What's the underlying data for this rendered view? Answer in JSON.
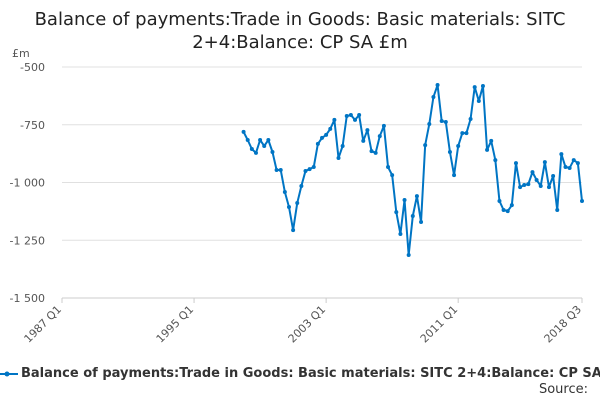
{
  "chart_data": {
    "type": "line",
    "title": "Balance of payments:Trade in Goods: Basic materials: SITC 2+4:Balance: CP SA £m",
    "ylabel": "£m",
    "ylim": [
      -1500,
      -500
    ],
    "yticks": [
      -500,
      -750,
      -1000,
      -1250,
      -1500
    ],
    "yticklabels": [
      "-500",
      "-750",
      "-1 000",
      "-1 250",
      "-1 500"
    ],
    "xticklabels": [
      "1987 Q1",
      "1995 Q1",
      "2003 Q1",
      "2011 Q1",
      "2018 Q3"
    ],
    "grid": true,
    "legend_placement": "bottom",
    "color": "#0075c4",
    "series": [
      {
        "name": "Balance of payments:Trade in Goods: Basic materials: SITC 2+4:Balance: CP SA £m",
        "x": [
          "1998 Q1",
          "1998 Q2",
          "1998 Q3",
          "1998 Q4",
          "1999 Q1",
          "1999 Q2",
          "1999 Q3",
          "1999 Q4",
          "2000 Q1",
          "2000 Q2",
          "2000 Q3",
          "2000 Q4",
          "2001 Q1",
          "2001 Q2",
          "2001 Q3",
          "2001 Q4",
          "2002 Q1",
          "2002 Q2",
          "2002 Q3",
          "2002 Q4",
          "2003 Q1",
          "2003 Q2",
          "2003 Q3",
          "2003 Q4",
          "2004 Q1",
          "2004 Q2",
          "2004 Q3",
          "2004 Q4",
          "2005 Q1",
          "2005 Q2",
          "2005 Q3",
          "2005 Q4",
          "2006 Q1",
          "2006 Q2",
          "2006 Q3",
          "2006 Q4",
          "2007 Q1",
          "2007 Q2",
          "2007 Q3",
          "2007 Q4",
          "2008 Q1",
          "2008 Q2",
          "2008 Q3",
          "2008 Q4",
          "2009 Q1",
          "2009 Q2",
          "2009 Q3",
          "2009 Q4",
          "2010 Q1",
          "2010 Q2",
          "2010 Q3",
          "2010 Q4",
          "2011 Q1",
          "2011 Q2",
          "2011 Q3",
          "2011 Q4",
          "2012 Q1",
          "2012 Q2",
          "2012 Q3",
          "2012 Q4",
          "2013 Q1",
          "2013 Q2",
          "2013 Q3",
          "2013 Q4",
          "2014 Q1",
          "2014 Q2",
          "2014 Q3",
          "2014 Q4",
          "2015 Q1",
          "2015 Q2",
          "2015 Q3",
          "2015 Q4",
          "2016 Q1",
          "2016 Q2",
          "2016 Q3",
          "2016 Q4",
          "2017 Q1",
          "2017 Q2",
          "2017 Q3",
          "2017 Q4",
          "2018 Q1",
          "2018 Q2",
          "2018 Q3"
        ],
        "values": [
          -781,
          -816,
          -855,
          -872,
          -816,
          -842,
          -816,
          -868,
          -946,
          -946,
          -1041,
          -1106,
          -1206,
          -1089,
          -1015,
          -950,
          -942,
          -933,
          -833,
          -807,
          -794,
          -768,
          -729,
          -894,
          -842,
          -712,
          -708,
          -729,
          -708,
          -820,
          -773,
          -864,
          -872,
          -799,
          -755,
          -933,
          -968,
          -1128,
          -1223,
          -1076,
          -1314,
          -1145,
          -1059,
          -1171,
          -838,
          -747,
          -630,
          -578,
          -734,
          -738,
          -868,
          -968,
          -842,
          -786,
          -786,
          -725,
          -587,
          -647,
          -582,
          -859,
          -820,
          -903,
          -1080,
          -1119,
          -1124,
          -1098,
          -916,
          -1020,
          -1011,
          -1007,
          -955,
          -989,
          -1015,
          -912,
          -1020,
          -972,
          -1119,
          -877,
          -933,
          -937,
          -903,
          -916,
          -1080
        ]
      }
    ]
  },
  "source_label": "Source:"
}
